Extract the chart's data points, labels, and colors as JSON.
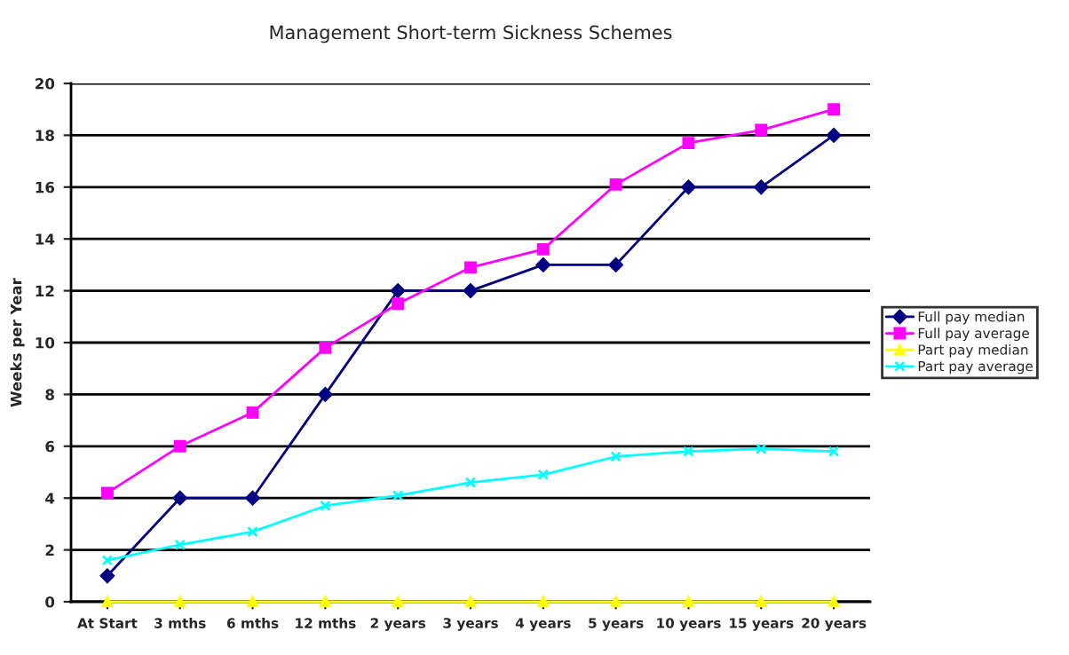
{
  "chart_data": {
    "type": "line",
    "title": "Management Short-term Sickness Schemes",
    "ylabel": "Weeks per Year",
    "categories": [
      "At Start",
      "3 mths",
      "6 mths",
      "12 mths",
      "2 years",
      "3 years",
      "4 years",
      "5 years",
      "10 years",
      "15 years",
      "20 years"
    ],
    "series": [
      {
        "name": "Full pay median",
        "color": "#000080",
        "marker": "diamond",
        "values": [
          1,
          4,
          4,
          8,
          12,
          12,
          13,
          13,
          16,
          16,
          18
        ]
      },
      {
        "name": "Full pay average",
        "color": "#ff00ff",
        "marker": "square",
        "values": [
          4.2,
          6,
          7.3,
          9.8,
          11.5,
          12.9,
          13.6,
          16.1,
          17.7,
          18.2,
          19
        ]
      },
      {
        "name": "Part pay median",
        "color": "#ffff00",
        "marker": "triangle",
        "values": [
          0,
          0,
          0,
          0,
          0,
          0,
          0,
          0,
          0,
          0,
          0
        ]
      },
      {
        "name": "Part pay average",
        "color": "#00ffff",
        "marker": "cross",
        "values": [
          1.6,
          2.2,
          2.7,
          3.7,
          4.1,
          4.6,
          4.9,
          5.6,
          5.8,
          5.9,
          5.8
        ]
      }
    ],
    "ylim": [
      0,
      20
    ],
    "yticks": [
      0,
      2,
      4,
      6,
      8,
      10,
      12,
      14,
      16,
      18,
      20
    ],
    "grid": "y",
    "legend": "right"
  }
}
